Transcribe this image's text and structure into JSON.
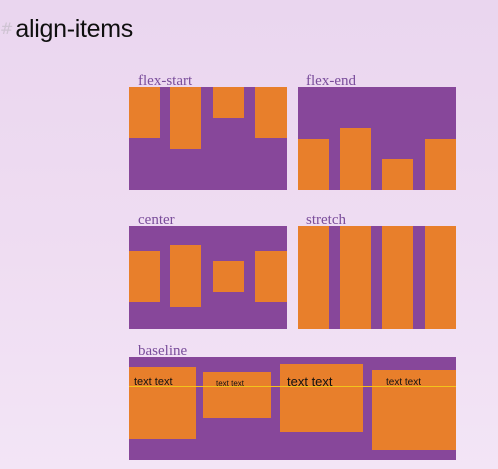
{
  "page": {
    "title": "align-items",
    "anchor_symbol": "#"
  },
  "colors": {
    "container": "#87479a",
    "item": "#e87f2b",
    "label": "#7a4d9b",
    "baseline_guide": "#f3c31b",
    "title": "#0f0f0f"
  },
  "examples": {
    "flex_start": {
      "label": "flex-start"
    },
    "flex_end": {
      "label": "flex-end"
    },
    "center": {
      "label": "center"
    },
    "stretch": {
      "label": "stretch"
    },
    "baseline": {
      "label": "baseline",
      "item_texts": [
        "text text",
        "text text",
        "text text",
        "text text"
      ]
    }
  }
}
